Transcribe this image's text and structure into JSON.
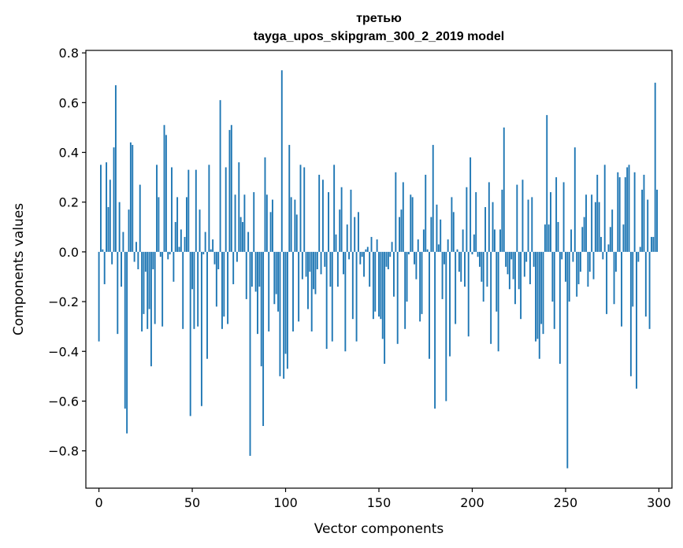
{
  "chart_data": {
    "type": "bar",
    "title_line1": "третью",
    "title_line2": "tayga_upos_skipgram_300_2_2019 model",
    "xlabel": "Vector components",
    "ylabel": "Components values",
    "xlim": [
      -7,
      307
    ],
    "ylim": [
      -0.95,
      0.81
    ],
    "xticks": [
      0,
      50,
      100,
      150,
      200,
      250,
      300
    ],
    "xtick_labels": [
      "0",
      "50",
      "100",
      "150",
      "200",
      "250",
      "300"
    ],
    "yticks": [
      -0.8,
      -0.6,
      -0.4,
      -0.2,
      0.0,
      0.2,
      0.4,
      0.6,
      0.8
    ],
    "ytick_labels": [
      "−0.8",
      "−0.6",
      "−0.4",
      "−0.2",
      "0.0",
      "0.2",
      "0.4",
      "0.6",
      "0.8"
    ],
    "bar_color": "#1f77b4",
    "values": [
      -0.36,
      0.35,
      0.01,
      -0.13,
      0.36,
      0.18,
      0.29,
      -0.05,
      0.42,
      0.67,
      -0.33,
      0.2,
      -0.14,
      0.08,
      -0.63,
      -0.73,
      0.17,
      0.44,
      0.43,
      -0.04,
      0.04,
      -0.07,
      0.27,
      -0.32,
      -0.25,
      -0.08,
      -0.31,
      -0.23,
      -0.46,
      -0.07,
      -0.29,
      0.35,
      0.22,
      -0.02,
      -0.3,
      0.51,
      0.47,
      -0.03,
      -0.01,
      0.34,
      -0.12,
      0.12,
      0.22,
      0.02,
      0.09,
      -0.31,
      0.06,
      0.22,
      0.33,
      -0.66,
      -0.15,
      -0.31,
      0.33,
      -0.3,
      0.17,
      -0.62,
      -0.01,
      0.08,
      -0.43,
      0.35,
      0.01,
      0.05,
      -0.05,
      -0.22,
      -0.07,
      0.61,
      -0.31,
      -0.26,
      0.34,
      -0.29,
      0.49,
      0.51,
      -0.13,
      0.23,
      -0.04,
      0.36,
      0.14,
      0.12,
      0.23,
      -0.19,
      0.08,
      -0.82,
      -0.14,
      0.24,
      -0.16,
      -0.33,
      -0.14,
      -0.46,
      -0.7,
      0.38,
      0.23,
      -0.32,
      0.16,
      0.21,
      -0.21,
      -0.17,
      -0.24,
      -0.5,
      0.73,
      -0.51,
      -0.41,
      -0.47,
      0.43,
      0.22,
      -0.32,
      0.21,
      0.15,
      -0.28,
      0.35,
      -0.11,
      0.34,
      -0.1,
      -0.23,
      -0.08,
      -0.32,
      -0.15,
      -0.17,
      -0.07,
      0.31,
      -0.09,
      0.29,
      -0.06,
      -0.39,
      0.24,
      -0.14,
      -0.36,
      0.35,
      0.07,
      -0.14,
      0.17,
      0.26,
      -0.09,
      -0.4,
      0.11,
      -0.03,
      0.25,
      -0.27,
      0.14,
      -0.36,
      0.16,
      -0.05,
      -0.02,
      -0.1,
      0.01,
      0.02,
      -0.14,
      0.06,
      -0.27,
      -0.24,
      0.05,
      -0.26,
      -0.27,
      -0.35,
      -0.45,
      -0.06,
      -0.07,
      -0.02,
      0.04,
      -0.18,
      0.32,
      -0.37,
      0.14,
      0.17,
      0.28,
      -0.31,
      -0.2,
      -0.01,
      0.23,
      0.22,
      -0.05,
      -0.11,
      0.05,
      -0.28,
      -0.25,
      0.09,
      0.31,
      0.01,
      -0.43,
      0.14,
      0.43,
      -0.63,
      0.19,
      0.03,
      0.13,
      -0.19,
      -0.05,
      -0.6,
      0.05,
      -0.42,
      0.22,
      0.16,
      -0.29,
      0.01,
      -0.08,
      -0.12,
      0.09,
      -0.14,
      0.26,
      -0.34,
      0.38,
      -0.01,
      0.07,
      0.24,
      -0.02,
      -0.06,
      -0.12,
      -0.2,
      0.18,
      -0.14,
      0.28,
      -0.37,
      0.2,
      0.09,
      -0.24,
      -0.4,
      0.09,
      0.25,
      0.5,
      -0.06,
      -0.09,
      -0.15,
      -0.03,
      -0.11,
      -0.21,
      0.27,
      -0.15,
      -0.27,
      0.29,
      -0.1,
      -0.04,
      0.21,
      -0.13,
      0.22,
      -0.06,
      -0.36,
      -0.35,
      -0.43,
      -0.29,
      -0.33,
      0.11,
      0.55,
      0.11,
      0.24,
      -0.2,
      -0.31,
      0.3,
      0.12,
      -0.45,
      -0.03,
      0.28,
      -0.12,
      -0.87,
      -0.2,
      0.09,
      -0.04,
      0.42,
      -0.18,
      -0.13,
      -0.08,
      0.1,
      0.14,
      0.23,
      -0.14,
      -0.08,
      0.23,
      -0.11,
      0.2,
      0.31,
      0.2,
      0.06,
      -0.03,
      0.35,
      -0.25,
      0.03,
      0.1,
      0.17,
      -0.21,
      -0.08,
      0.32,
      0.3,
      -0.3,
      0.11,
      0.3,
      0.34,
      0.35,
      -0.5,
      -0.22,
      0.32,
      -0.55,
      -0.04,
      0.02,
      0.25,
      0.31,
      -0.26,
      0.21,
      -0.31,
      0.06,
      0.06,
      0.68,
      0.25
    ]
  }
}
